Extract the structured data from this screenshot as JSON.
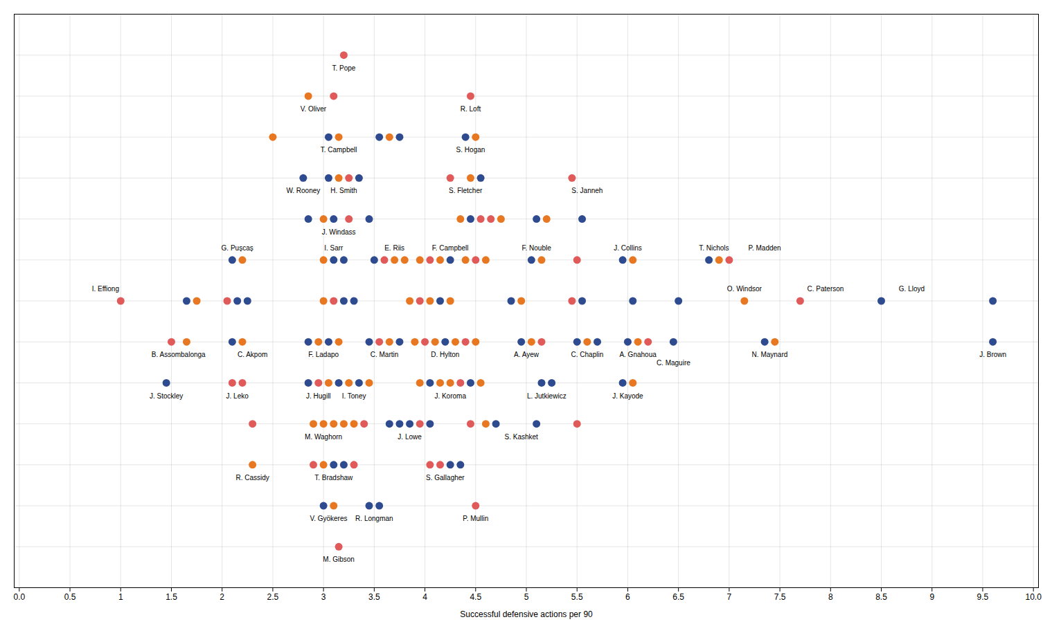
{
  "chart_data": {
    "type": "scatter",
    "xlabel": "Successful defensive actions per 90",
    "xlim": [
      -0.05,
      10.05
    ],
    "xticks": [
      {
        "value": 0,
        "label": "0.0"
      },
      0.5,
      1,
      1.5,
      2,
      2.5,
      3,
      3.5,
      4,
      4.5,
      5,
      5.5,
      6,
      6.5,
      7,
      7.5,
      8,
      8.5,
      9,
      9.5,
      {
        "value": 10,
        "label": "10.0"
      }
    ],
    "ylim": [
      -1.5,
      19.5
    ],
    "yticks": [
      0.0,
      1.5,
      3.0,
      4.5,
      6.0,
      7.5,
      9.0,
      10.5,
      12.0,
      13.5,
      15.0,
      16.5,
      18.0
    ],
    "grid": true,
    "tick_labels": "x",
    "x": [
      3.2,
      2.85,
      3.1,
      4.45,
      2.5,
      3.05,
      3.15,
      3.55,
      3.65,
      3.75,
      4.4,
      4.5,
      2.8,
      3.05,
      3.15,
      3.25,
      3.35,
      4.25,
      4.45,
      4.55,
      5.45,
      2.85,
      3.0,
      3.1,
      3.25,
      3.45,
      4.35,
      4.45,
      4.55,
      4.65,
      4.75,
      5.1,
      5.2,
      5.55,
      2.1,
      2.2,
      3.0,
      3.1,
      3.2,
      3.5,
      3.6,
      3.7,
      3.8,
      3.95,
      4.05,
      4.15,
      4.25,
      4.4,
      4.5,
      4.6,
      5.05,
      5.15,
      5.5,
      5.95,
      6.05,
      6.8,
      6.9,
      7.0,
      1.0,
      1.65,
      1.75,
      2.05,
      2.15,
      2.25,
      3.0,
      3.1,
      3.2,
      3.3,
      3.85,
      3.95,
      4.05,
      4.15,
      4.25,
      4.85,
      4.95,
      5.45,
      5.55,
      6.05,
      6.5,
      7.15,
      7.7,
      8.5,
      9.6,
      1.5,
      1.65,
      2.1,
      2.2,
      2.85,
      2.95,
      3.05,
      3.15,
      3.45,
      3.55,
      3.65,
      3.75,
      3.9,
      4.0,
      4.1,
      4.2,
      4.3,
      4.4,
      4.5,
      4.95,
      5.05,
      5.15,
      5.5,
      5.6,
      5.7,
      6.0,
      6.1,
      6.2,
      6.45,
      7.35,
      7.45,
      9.6,
      1.45,
      2.1,
      2.2,
      2.85,
      2.95,
      3.05,
      3.15,
      3.25,
      3.35,
      3.45,
      3.95,
      4.05,
      4.15,
      4.25,
      4.35,
      4.45,
      4.55,
      5.15,
      5.25,
      5.95,
      6.05,
      2.3,
      2.9,
      3.0,
      3.1,
      3.2,
      3.3,
      3.4,
      3.65,
      3.75,
      3.85,
      3.95,
      4.05,
      4.45,
      4.6,
      4.7,
      5.1,
      5.5,
      2.3,
      2.9,
      3.0,
      3.1,
      3.2,
      3.3,
      4.05,
      4.15,
      4.25,
      4.35,
      3.0,
      3.1,
      3.45,
      3.55,
      4.5,
      3.15
    ],
    "values": [
      18.0,
      16.5,
      16.5,
      16.5,
      15.0,
      15.0,
      15.0,
      15.0,
      15.0,
      15.0,
      15.0,
      15.0,
      13.5,
      13.5,
      13.5,
      13.5,
      13.5,
      13.5,
      13.5,
      13.5,
      13.5,
      12.0,
      12.0,
      12.0,
      12.0,
      12.0,
      12.0,
      12.0,
      12.0,
      12.0,
      12.0,
      12.0,
      12.0,
      12.0,
      10.5,
      10.5,
      10.5,
      10.5,
      10.5,
      10.5,
      10.5,
      10.5,
      10.5,
      10.5,
      10.5,
      10.5,
      10.5,
      10.5,
      10.5,
      10.5,
      10.5,
      10.5,
      10.5,
      10.5,
      10.5,
      10.5,
      10.5,
      10.5,
      9.0,
      9.0,
      9.0,
      9.0,
      9.0,
      9.0,
      9.0,
      9.0,
      9.0,
      9.0,
      9.0,
      9.0,
      9.0,
      9.0,
      9.0,
      9.0,
      9.0,
      9.0,
      9.0,
      9.0,
      9.0,
      9.0,
      9.0,
      9.0,
      9.0,
      7.5,
      7.5,
      7.5,
      7.5,
      7.5,
      7.5,
      7.5,
      7.5,
      7.5,
      7.5,
      7.5,
      7.5,
      7.5,
      7.5,
      7.5,
      7.5,
      7.5,
      7.5,
      7.5,
      7.5,
      7.5,
      7.5,
      7.5,
      7.5,
      7.5,
      7.5,
      7.5,
      7.5,
      7.5,
      7.5,
      7.5,
      7.5,
      6.0,
      6.0,
      6.0,
      6.0,
      6.0,
      6.0,
      6.0,
      6.0,
      6.0,
      6.0,
      6.0,
      6.0,
      6.0,
      6.0,
      6.0,
      6.0,
      6.0,
      6.0,
      6.0,
      6.0,
      6.0,
      4.5,
      4.5,
      4.5,
      4.5,
      4.5,
      4.5,
      4.5,
      4.5,
      4.5,
      4.5,
      4.5,
      4.5,
      4.5,
      4.5,
      4.5,
      4.5,
      4.5,
      3.0,
      3.0,
      3.0,
      3.0,
      3.0,
      3.0,
      3.0,
      3.0,
      3.0,
      3.0,
      1.5,
      1.5,
      1.5,
      1.5,
      1.5,
      0.0
    ],
    "colors": [
      "#E05A5A",
      "#E87722",
      "#E05A5A",
      "#E05A5A",
      "#E87722",
      "#2E4B8F",
      "#E87722",
      "#2E4B8F",
      "#E87722",
      "#2E4B8F",
      "#2E4B8F",
      "#E87722",
      "#2E4B8F",
      "#2E4B8F",
      "#E87722",
      "#E05A5A",
      "#2E4B8F",
      "#E05A5A",
      "#E87722",
      "#2E4B8F",
      "#E05A5A",
      "#2E4B8F",
      "#E87722",
      "#2E4B8F",
      "#E05A5A",
      "#2E4B8F",
      "#E87722",
      "#2E4B8F",
      "#E05A5A",
      "#E05A5A",
      "#E87722",
      "#2E4B8F",
      "#E87722",
      "#2E4B8F",
      "#2E4B8F",
      "#E87722",
      "#E87722",
      "#2E4B8F",
      "#2E4B8F",
      "#2E4B8F",
      "#E05A5A",
      "#E87722",
      "#E87722",
      "#E87722",
      "#E05A5A",
      "#E87722",
      "#2E4B8F",
      "#E87722",
      "#E05A5A",
      "#E87722",
      "#2E4B8F",
      "#E87722",
      "#E05A5A",
      "#2E4B8F",
      "#E87722",
      "#2E4B8F",
      "#E87722",
      "#E05A5A",
      "#E05A5A",
      "#2E4B8F",
      "#E87722",
      "#E05A5A",
      "#2E4B8F",
      "#2E4B8F",
      "#E87722",
      "#E05A5A",
      "#2E4B8F",
      "#2E4B8F",
      "#E87722",
      "#E05A5A",
      "#E87722",
      "#2E4B8F",
      "#E87722",
      "#2E4B8F",
      "#E87722",
      "#E05A5A",
      "#2E4B8F",
      "#2E4B8F",
      "#2E4B8F",
      "#E87722",
      "#E05A5A",
      "#2E4B8F",
      "#2E4B8F",
      "#E05A5A",
      "#E87722",
      "#2E4B8F",
      "#E87722",
      "#2E4B8F",
      "#E87722",
      "#2E4B8F",
      "#E87722",
      "#2E4B8F",
      "#E05A5A",
      "#E87722",
      "#2E4B8F",
      "#E87722",
      "#E05A5A",
      "#E87722",
      "#2E4B8F",
      "#E87722",
      "#E05A5A",
      "#E87722",
      "#2E4B8F",
      "#E87722",
      "#E05A5A",
      "#2E4B8F",
      "#E87722",
      "#2E4B8F",
      "#2E4B8F",
      "#E87722",
      "#E05A5A",
      "#2E4B8F",
      "#2E4B8F",
      "#E87722",
      "#2E4B8F",
      "#2E4B8F",
      "#E05A5A",
      "#E05A5A",
      "#2E4B8F",
      "#E05A5A",
      "#E87722",
      "#2E4B8F",
      "#E87722",
      "#2E4B8F",
      "#E87722",
      "#E87722",
      "#2E4B8F",
      "#E87722",
      "#E87722",
      "#E05A5A",
      "#2E4B8F",
      "#E87722",
      "#2E4B8F",
      "#2E4B8F",
      "#2E4B8F",
      "#E87722",
      "#E05A5A",
      "#E87722",
      "#E87722",
      "#E87722",
      "#E87722",
      "#E87722",
      "#E05A5A",
      "#2E4B8F",
      "#2E4B8F",
      "#2E4B8F",
      "#E05A5A",
      "#2E4B8F",
      "#E05A5A",
      "#E87722",
      "#2E4B8F",
      "#2E4B8F",
      "#E05A5A",
      "#E87722",
      "#E05A5A",
      "#E87722",
      "#2E4B8F",
      "#2E4B8F",
      "#E05A5A",
      "#E05A5A",
      "#E05A5A",
      "#2E4B8F",
      "#2E4B8F",
      "#2E4B8F",
      "#E87722",
      "#2E4B8F",
      "#2E4B8F",
      "#E05A5A",
      "#E05A5A"
    ],
    "annotations": [
      {
        "text": "T. Pope",
        "x": 3.2,
        "y": 17.62
      },
      {
        "text": "V. Oliver",
        "x": 2.9,
        "y": 16.12
      },
      {
        "text": "R. Loft",
        "x": 4.45,
        "y": 16.12
      },
      {
        "text": "T. Campbell",
        "x": 3.15,
        "y": 14.62
      },
      {
        "text": "S. Hogan",
        "x": 4.45,
        "y": 14.62
      },
      {
        "text": "W. Rooney",
        "x": 2.8,
        "y": 13.12
      },
      {
        "text": "H. Smith",
        "x": 3.2,
        "y": 13.12
      },
      {
        "text": "S. Fletcher",
        "x": 4.4,
        "y": 13.12
      },
      {
        "text": "S. Janneh",
        "x": 5.6,
        "y": 13.12
      },
      {
        "text": "J. Windass",
        "x": 3.15,
        "y": 11.62
      },
      {
        "text": "G. Pușcaș",
        "x": 2.15,
        "y": 10.85
      },
      {
        "text": "I. Sarr",
        "x": 3.1,
        "y": 10.85
      },
      {
        "text": "E. Riis",
        "x": 3.7,
        "y": 10.85
      },
      {
        "text": "F. Campbell",
        "x": 4.25,
        "y": 10.85
      },
      {
        "text": "F. Nouble",
        "x": 5.1,
        "y": 10.85
      },
      {
        "text": "J. Collins",
        "x": 6.0,
        "y": 10.85
      },
      {
        "text": "T. Nichols",
        "x": 6.85,
        "y": 10.85
      },
      {
        "text": "P. Madden",
        "x": 7.35,
        "y": 10.85
      },
      {
        "text": "I. Effiong",
        "x": 0.85,
        "y": 9.35
      },
      {
        "text": "O. Windsor",
        "x": 7.15,
        "y": 9.35
      },
      {
        "text": "C. Paterson",
        "x": 7.95,
        "y": 9.35
      },
      {
        "text": "G. Lloyd",
        "x": 8.8,
        "y": 9.35
      },
      {
        "text": "B. Assombalonga",
        "x": 1.57,
        "y": 7.12
      },
      {
        "text": "C. Akpom",
        "x": 2.3,
        "y": 7.12
      },
      {
        "text": "F. Ladapo",
        "x": 3.0,
        "y": 7.12
      },
      {
        "text": "C. Martin",
        "x": 3.6,
        "y": 7.12
      },
      {
        "text": "D. Hylton",
        "x": 4.2,
        "y": 7.12
      },
      {
        "text": "A. Ayew",
        "x": 5.0,
        "y": 7.12
      },
      {
        "text": "C. Chaplin",
        "x": 5.6,
        "y": 7.12
      },
      {
        "text": "A. Gnahoua",
        "x": 6.1,
        "y": 7.12
      },
      {
        "text": "C. Maguire",
        "x": 6.45,
        "y": 7.12
      },
      {
        "text": "N. Maynard",
        "x": 7.4,
        "y": 7.12
      },
      {
        "text": "J. Brown",
        "x": 9.6,
        "y": 7.12
      },
      {
        "text": "J. Stockley",
        "x": 1.45,
        "y": 5.62
      },
      {
        "text": "J. Leko",
        "x": 2.15,
        "y": 5.62
      },
      {
        "text": "J. Hugill",
        "x": 2.95,
        "y": 5.62
      },
      {
        "text": "I. Toney",
        "x": 3.3,
        "y": 5.62
      },
      {
        "text": "J. Koroma",
        "x": 4.25,
        "y": 5.62
      },
      {
        "text": "L. Jutkiewicz",
        "x": 5.2,
        "y": 5.62
      },
      {
        "text": "J. Kayode",
        "x": 6.0,
        "y": 5.62
      },
      {
        "text": "M. Waghorn",
        "x": 3.0,
        "y": 4.12
      },
      {
        "text": "J. Lowe",
        "x": 3.85,
        "y": 4.12
      },
      {
        "text": "S. Kashket",
        "x": 4.95,
        "y": 4.12
      },
      {
        "text": "R. Cassidy",
        "x": 2.3,
        "y": 2.62
      },
      {
        "text": "T. Bradshaw",
        "x": 3.1,
        "y": 2.62
      },
      {
        "text": "S. Gallagher",
        "x": 4.2,
        "y": 2.62
      },
      {
        "text": "V. Gyökeres",
        "x": 3.05,
        "y": 1.12
      },
      {
        "text": "R. Longman",
        "x": 3.5,
        "y": 1.12
      },
      {
        "text": "P. Mullin",
        "x": 4.5,
        "y": 1.12
      },
      {
        "text": "M. Gibson",
        "x": 3.15,
        "y": -0.38
      }
    ]
  }
}
